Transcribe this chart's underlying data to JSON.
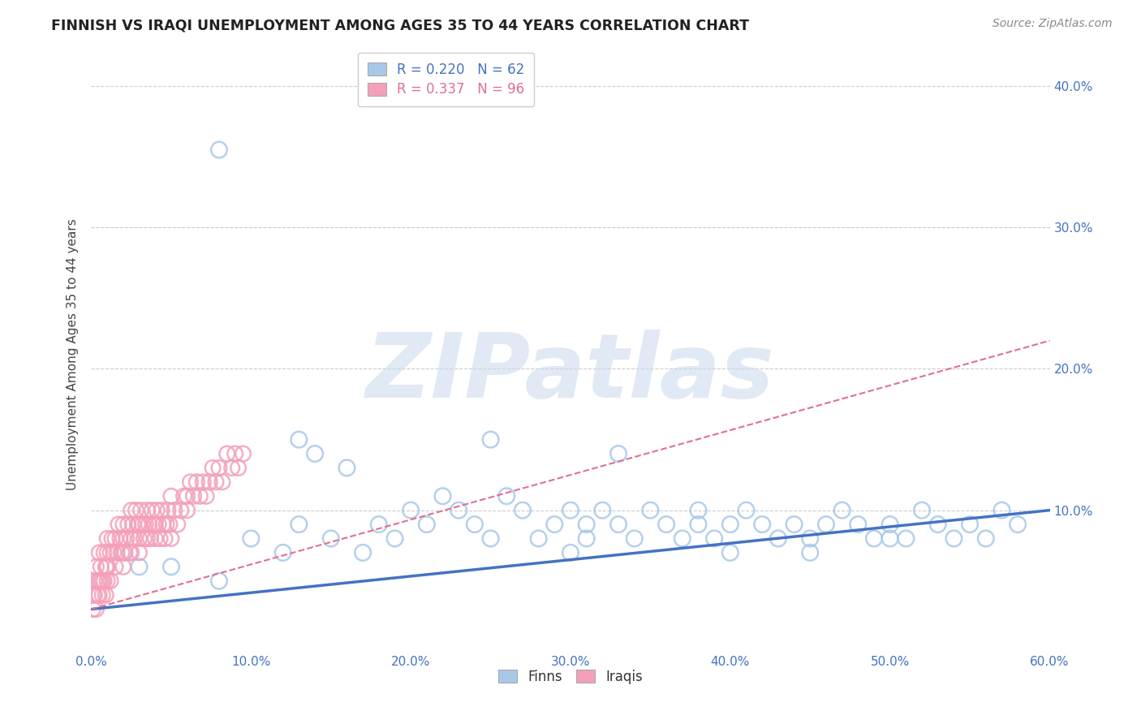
{
  "title": "FINNISH VS IRAQI UNEMPLOYMENT AMONG AGES 35 TO 44 YEARS CORRELATION CHART",
  "source": "Source: ZipAtlas.com",
  "ylabel": "Unemployment Among Ages 35 to 44 years",
  "xlim": [
    0.0,
    0.6
  ],
  "ylim": [
    0.0,
    0.42
  ],
  "finns_R": 0.22,
  "finns_N": 62,
  "iraqis_R": 0.337,
  "iraqis_N": 96,
  "blue_color": "#A8C8E8",
  "pink_color": "#F4A0B8",
  "blue_line_color": "#4472C4",
  "pink_line_color": "#E07090",
  "watermark": "ZIPatlas",
  "background_color": "#FFFFFF",
  "grid_color": "#CCCCCC",
  "finns_x": [
    0.02,
    0.05,
    0.08,
    0.1,
    0.12,
    0.13,
    0.15,
    0.17,
    0.18,
    0.19,
    0.2,
    0.21,
    0.22,
    0.23,
    0.24,
    0.25,
    0.26,
    0.27,
    0.28,
    0.29,
    0.3,
    0.3,
    0.31,
    0.31,
    0.32,
    0.33,
    0.34,
    0.35,
    0.36,
    0.37,
    0.38,
    0.38,
    0.39,
    0.4,
    0.41,
    0.42,
    0.43,
    0.44,
    0.45,
    0.46,
    0.47,
    0.48,
    0.49,
    0.5,
    0.51,
    0.52,
    0.53,
    0.54,
    0.55,
    0.56,
    0.57,
    0.58,
    0.14,
    0.16,
    0.25,
    0.33,
    0.08,
    0.5,
    0.4,
    0.45,
    0.03,
    0.13
  ],
  "finns_y": [
    0.07,
    0.06,
    0.05,
    0.08,
    0.07,
    0.09,
    0.08,
    0.07,
    0.09,
    0.08,
    0.1,
    0.09,
    0.11,
    0.1,
    0.09,
    0.08,
    0.11,
    0.1,
    0.08,
    0.09,
    0.07,
    0.1,
    0.09,
    0.08,
    0.1,
    0.09,
    0.08,
    0.1,
    0.09,
    0.08,
    0.09,
    0.1,
    0.08,
    0.09,
    0.1,
    0.09,
    0.08,
    0.09,
    0.08,
    0.09,
    0.1,
    0.09,
    0.08,
    0.09,
    0.08,
    0.1,
    0.09,
    0.08,
    0.09,
    0.08,
    0.1,
    0.09,
    0.14,
    0.13,
    0.15,
    0.14,
    0.355,
    0.08,
    0.07,
    0.07,
    0.06,
    0.15
  ],
  "iraqis_x": [
    0.001,
    0.002,
    0.003,
    0.004,
    0.005,
    0.005,
    0.006,
    0.007,
    0.008,
    0.009,
    0.01,
    0.01,
    0.01,
    0.012,
    0.013,
    0.014,
    0.015,
    0.015,
    0.016,
    0.017,
    0.018,
    0.019,
    0.02,
    0.02,
    0.021,
    0.022,
    0.023,
    0.024,
    0.025,
    0.025,
    0.026,
    0.027,
    0.028,
    0.029,
    0.03,
    0.03,
    0.031,
    0.032,
    0.033,
    0.034,
    0.035,
    0.036,
    0.037,
    0.038,
    0.039,
    0.04,
    0.04,
    0.041,
    0.042,
    0.043,
    0.044,
    0.045,
    0.046,
    0.047,
    0.048,
    0.049,
    0.05,
    0.05,
    0.052,
    0.054,
    0.056,
    0.058,
    0.06,
    0.06,
    0.062,
    0.064,
    0.066,
    0.068,
    0.07,
    0.072,
    0.074,
    0.076,
    0.078,
    0.08,
    0.082,
    0.085,
    0.088,
    0.09,
    0.092,
    0.095,
    0.001,
    0.002,
    0.003,
    0.004,
    0.005,
    0.006,
    0.007,
    0.008,
    0.009,
    0.01,
    0.01,
    0.012,
    0.02,
    0.025,
    0.03,
    0.035
  ],
  "iraqis_y": [
    0.04,
    0.05,
    0.06,
    0.04,
    0.05,
    0.07,
    0.06,
    0.05,
    0.07,
    0.06,
    0.07,
    0.08,
    0.06,
    0.07,
    0.08,
    0.07,
    0.06,
    0.08,
    0.07,
    0.09,
    0.08,
    0.07,
    0.08,
    0.09,
    0.07,
    0.08,
    0.09,
    0.07,
    0.08,
    0.1,
    0.09,
    0.08,
    0.1,
    0.09,
    0.08,
    0.09,
    0.1,
    0.09,
    0.08,
    0.09,
    0.1,
    0.09,
    0.08,
    0.1,
    0.09,
    0.08,
    0.09,
    0.1,
    0.09,
    0.08,
    0.1,
    0.09,
    0.08,
    0.09,
    0.1,
    0.09,
    0.08,
    0.11,
    0.1,
    0.09,
    0.1,
    0.11,
    0.1,
    0.11,
    0.12,
    0.11,
    0.12,
    0.11,
    0.12,
    0.11,
    0.12,
    0.13,
    0.12,
    0.13,
    0.12,
    0.14,
    0.13,
    0.14,
    0.13,
    0.14,
    0.03,
    0.04,
    0.03,
    0.05,
    0.04,
    0.05,
    0.04,
    0.05,
    0.04,
    0.05,
    0.06,
    0.05,
    0.06,
    0.07,
    0.07,
    0.08
  ]
}
